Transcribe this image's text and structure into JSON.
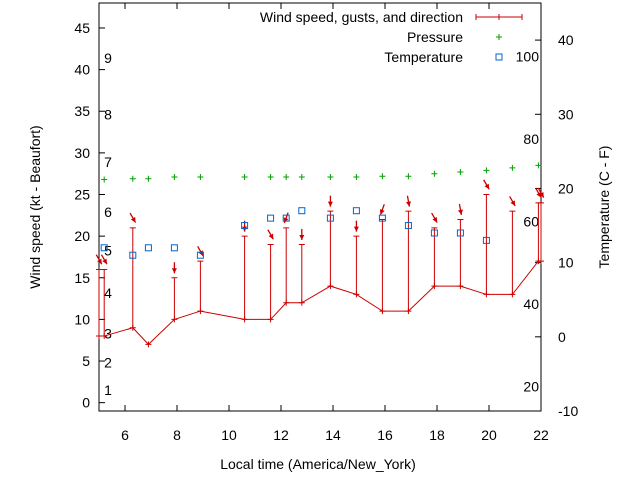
{
  "chart_data": {
    "type": "line",
    "xlabel": "Local time (America/New_York)",
    "ylabel_left": "Wind speed (kt - Beaufort)",
    "ylabel_right": "Temperature (C - F)",
    "xlim": [
      5,
      22
    ],
    "ylim": [
      -1,
      48
    ],
    "y2lim": [
      -10,
      45
    ],
    "x_ticks": [
      "6",
      "8",
      "10",
      "12",
      "14",
      "16",
      "18",
      "20",
      "22"
    ],
    "y_ticks": [
      "0",
      "5",
      "10",
      "15",
      "20",
      "25",
      "30",
      "35",
      "40",
      "45"
    ],
    "y2_ticks": [
      "-10",
      "0",
      "10",
      "20",
      "30",
      "40"
    ],
    "beaufort_labels": [
      "1",
      "2",
      "3",
      "4",
      "5",
      "6",
      "7",
      "8",
      "9"
    ],
    "fahrenheit_labels": [
      "20",
      "40",
      "60",
      "80",
      "100"
    ],
    "legend_position": "top-right",
    "legend": [
      "Wind speed, gusts, and direction",
      "Pressure",
      "Temperature"
    ],
    "colors": {
      "wind": "#cc0000",
      "pressure": "#00a000",
      "temperature": "#0066cc"
    },
    "series": [
      {
        "name": "Wind speed, gusts, and direction",
        "x": [
          5.0,
          5.2,
          6.3,
          6.9,
          7.9,
          8.9,
          10.6,
          11.6,
          12.2,
          12.8,
          13.9,
          14.9,
          15.9,
          16.9,
          17.9,
          18.9,
          19.9,
          20.9,
          21.9,
          22.0
        ],
        "y": [
          8,
          8,
          9,
          7,
          10,
          11,
          10,
          10,
          12,
          12,
          14,
          13,
          11,
          11,
          14,
          14,
          13,
          13,
          17,
          17
        ],
        "gusts": [
          16,
          16,
          21,
          null,
          15,
          17,
          20,
          19,
          21,
          19,
          23,
          20,
          22,
          23,
          21,
          22,
          25,
          23,
          24,
          24
        ],
        "direction_deg": [
          300,
          300,
          300,
          300,
          270,
          300,
          270,
          300,
          250,
          270,
          270,
          270,
          250,
          280,
          300,
          280,
          300,
          300,
          300,
          300
        ]
      },
      {
        "name": "Pressure",
        "x": [
          5.2,
          6.3,
          6.9,
          7.9,
          8.9,
          10.6,
          11.6,
          12.2,
          12.8,
          13.9,
          14.9,
          15.9,
          16.9,
          17.9,
          18.9,
          19.9,
          20.9,
          21.9
        ],
        "y": [
          26.8,
          26.9,
          26.9,
          27.1,
          27.1,
          27.1,
          27.1,
          27.1,
          27.1,
          27.1,
          27.1,
          27.2,
          27.2,
          27.5,
          27.7,
          27.9,
          28.2,
          28.5
        ]
      },
      {
        "name": "Temperature",
        "x": [
          5.2,
          6.3,
          6.9,
          7.9,
          8.9,
          10.6,
          11.6,
          12.2,
          12.8,
          13.9,
          14.9,
          15.9,
          16.9,
          17.9,
          18.9,
          19.9
        ],
        "y": [
          12,
          11,
          12,
          12,
          11,
          15,
          16,
          16,
          17,
          16,
          17,
          16,
          15,
          14,
          14,
          13
        ]
      }
    ]
  }
}
